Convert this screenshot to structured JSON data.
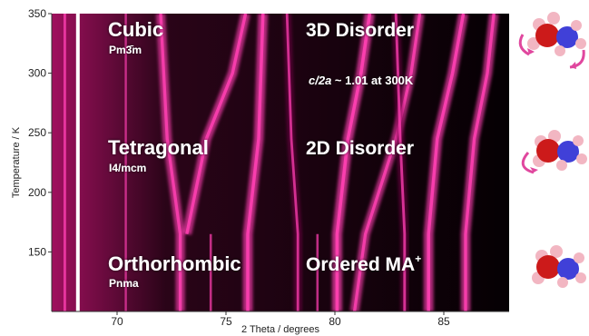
{
  "chart_data": {
    "type": "heatmap",
    "title": "",
    "xlabel": "2 Theta / degrees",
    "ylabel": "Temperature / K",
    "xlim": [
      67,
      88
    ],
    "ylim": [
      100,
      350
    ],
    "x_ticks": [
      70,
      75,
      80,
      85
    ],
    "y_ticks": [
      150,
      200,
      250,
      300,
      350
    ],
    "grid": false,
    "colormap": {
      "background": "#000000",
      "low": "#7a0a4a",
      "high": "#ff3fb2",
      "peak": "#ffffff"
    },
    "transitions_K": [
      165,
      245
    ],
    "phases": [
      {
        "name": "Cubic",
        "space_group": "Pm3̄m",
        "disorder": "3D Disorder",
        "label_T": 338,
        "T_range": [
          245,
          350
        ]
      },
      {
        "name": "Tetragonal",
        "space_group": "I4/mcm",
        "disorder": "2D Disorder",
        "label_T": 235,
        "T_range": [
          165,
          245
        ]
      },
      {
        "name": "Orthorhombic",
        "space_group": "Pnma",
        "disorder": "Ordered MA⁺",
        "label_T": 128,
        "T_range": [
          100,
          165
        ]
      }
    ],
    "annotation": {
      "prefix": "c/2a",
      "text": " ~ 1.01 at 300K",
      "T": 300
    },
    "reflections": [
      {
        "x_at_T": [
          [
            68.2,
            100
          ],
          [
            68.2,
            350
          ]
        ],
        "intensity": 1.0
      },
      {
        "x_at_T": [
          [
            67.6,
            100
          ],
          [
            67.6,
            350
          ]
        ],
        "intensity": 0.55
      },
      {
        "x_at_T": [
          [
            72.9,
            100
          ],
          [
            72.9,
            165
          ],
          [
            72.3,
            245
          ],
          [
            72.0,
            350
          ]
        ],
        "intensity": 0.7
      },
      {
        "x_at_T": [
          [
            73.2,
            165
          ],
          [
            74.1,
            245
          ],
          [
            75.3,
            300
          ],
          [
            75.9,
            350
          ]
        ],
        "intensity": 0.75
      },
      {
        "x_at_T": [
          [
            76.0,
            100
          ],
          [
            76.0,
            165
          ],
          [
            76.5,
            245
          ],
          [
            76.7,
            350
          ]
        ],
        "intensity": 0.8
      },
      {
        "x_at_T": [
          [
            78.3,
            100
          ],
          [
            78.3,
            165
          ],
          [
            78.0,
            245
          ],
          [
            77.8,
            350
          ]
        ],
        "intensity": 0.5
      },
      {
        "x_at_T": [
          [
            80.1,
            100
          ],
          [
            80.1,
            165
          ],
          [
            80.6,
            245
          ],
          [
            81.2,
            300
          ],
          [
            81.6,
            350
          ]
        ],
        "intensity": 0.85
      },
      {
        "x_at_T": [
          [
            80.9,
            100
          ],
          [
            81.4,
            165
          ],
          [
            82.8,
            245
          ],
          [
            83.5,
            300
          ],
          [
            83.9,
            350
          ]
        ],
        "intensity": 0.7
      },
      {
        "x_at_T": [
          [
            83.2,
            100
          ],
          [
            83.2,
            165
          ],
          [
            83.0,
            245
          ],
          [
            82.8,
            350
          ]
        ],
        "intensity": 0.55
      },
      {
        "x_at_T": [
          [
            84.3,
            100
          ],
          [
            84.3,
            165
          ],
          [
            84.7,
            245
          ],
          [
            85.4,
            300
          ],
          [
            85.9,
            350
          ]
        ],
        "intensity": 0.8
      },
      {
        "x_at_T": [
          [
            86.0,
            100
          ],
          [
            86.0,
            165
          ],
          [
            86.4,
            245
          ],
          [
            87.0,
            300
          ],
          [
            87.3,
            350
          ]
        ],
        "intensity": 0.75
      },
      {
        "x_at_T": [
          [
            70.4,
            100
          ],
          [
            70.4,
            350
          ]
        ],
        "intensity": 0.35
      },
      {
        "x_at_T": [
          [
            74.3,
            100
          ],
          [
            74.3,
            165
          ]
        ],
        "intensity": 0.45
      },
      {
        "x_at_T": [
          [
            79.2,
            100
          ],
          [
            79.2,
            165
          ]
        ],
        "intensity": 0.45
      }
    ]
  },
  "molecules": [
    {
      "state": "rotating-3d",
      "name": "methylammonium-cation"
    },
    {
      "state": "rotating-2d",
      "name": "methylammonium-cation"
    },
    {
      "state": "ordered",
      "name": "methylammonium-cation"
    }
  ],
  "colors": {
    "carbon": "#cc1a1a",
    "nitrogen": "#4040d8",
    "hydrogen": "#f2b6c2",
    "arrow": "#e0479e"
  }
}
